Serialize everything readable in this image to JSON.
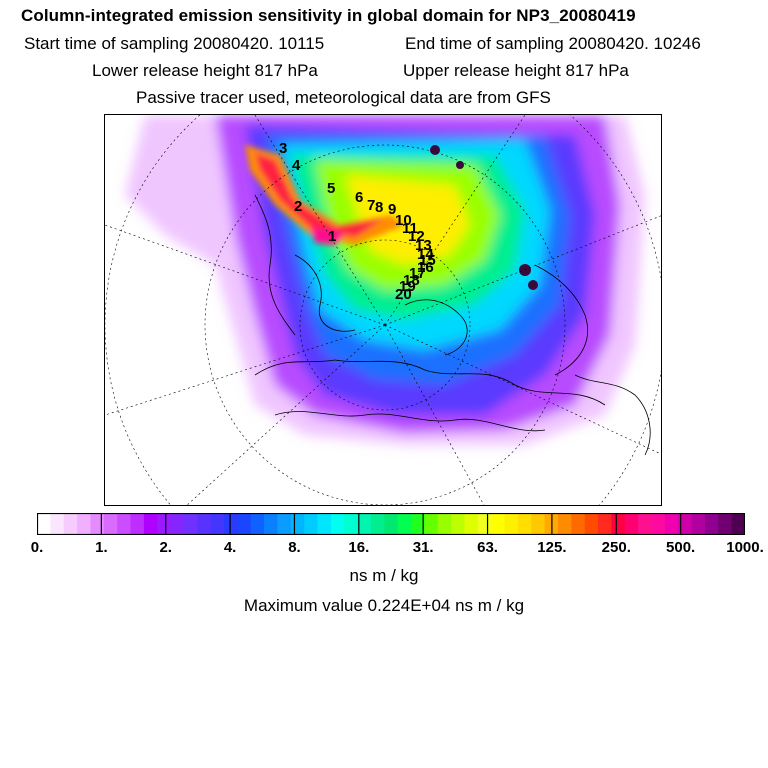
{
  "title": "Column-integrated emission sensitivity in global domain for NP3_20080419",
  "sampling": {
    "start": "Start time of sampling 20080420. 10115",
    "end": "End time of sampling 20080420. 10246"
  },
  "release": {
    "lower": "Lower release height  817 hPa",
    "upper": "Upper release height  817 hPa"
  },
  "tracer_note": "Passive tracer used, meteorological data are from GFS",
  "colorbar": {
    "ticks": [
      "0.",
      "1.",
      "2.",
      "4.",
      "8.",
      "16.",
      "31.",
      "63.",
      "125.",
      "250.",
      "500.",
      "1000."
    ],
    "colors": [
      "#ffffff",
      "#fbe6ff",
      "#f6ccff",
      "#f1b0ff",
      "#e58bff",
      "#d96cff",
      "#cc4dff",
      "#be2eff",
      "#b000ff",
      "#9a1aff",
      "#8526ff",
      "#7030ff",
      "#5a32ff",
      "#4236ff",
      "#2a3aff",
      "#1b46ff",
      "#0f62ff",
      "#0a80ff",
      "#0a9cff",
      "#00b4ff",
      "#00ccff",
      "#00e6ff",
      "#00fff0",
      "#00ffd0",
      "#00f5b0",
      "#00ee90",
      "#00e870",
      "#00ff50",
      "#20ff20",
      "#66ff00",
      "#99ff00",
      "#bbff00",
      "#ddff00",
      "#f0ff20",
      "#ffff00",
      "#fff000",
      "#ffde00",
      "#ffc800",
      "#ffaa00",
      "#ff8c00",
      "#ff6a00",
      "#ff4a00",
      "#ff2a20",
      "#ff0040",
      "#ff0070",
      "#ff1090",
      "#ff0aa0",
      "#f000b0",
      "#d000a8",
      "#b000a0",
      "#900090",
      "#700070",
      "#500050"
    ],
    "unit_label": "ns m / kg"
  },
  "max_value": "Maximum value  0.224E+04 ns m / kg",
  "map": {
    "trajectory_labels": [
      "3",
      "4",
      "5",
      "6",
      "2",
      "1",
      "7",
      "8",
      "9",
      "10",
      "11",
      "12",
      "13",
      "14",
      "15",
      "16",
      "17",
      "18",
      "19",
      "20"
    ]
  }
}
